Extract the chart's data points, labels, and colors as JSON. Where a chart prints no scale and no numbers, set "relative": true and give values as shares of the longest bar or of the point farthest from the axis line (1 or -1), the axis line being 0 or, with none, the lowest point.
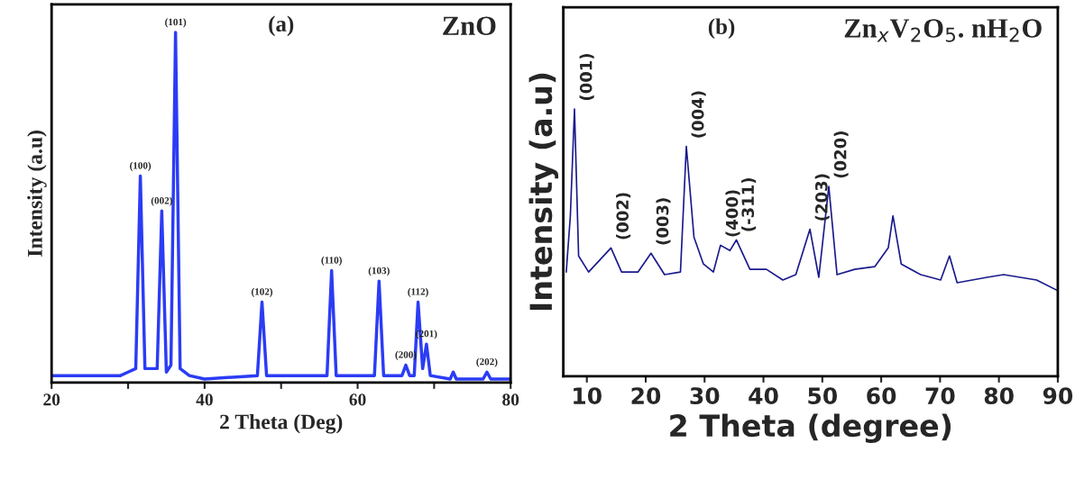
{
  "chart_data": [
    {
      "type": "line",
      "title": "ZnO",
      "xlabel": "2 Theta (Deg)",
      "ylabel": "Intensity (a.u)",
      "relative": true,
      "x": [
        20,
        25,
        29,
        30,
        31.0,
        31.6,
        32.2,
        33.8,
        34.4,
        35.0,
        35.6,
        36.2,
        36.8,
        38,
        40,
        46.9,
        47.5,
        48.1,
        56,
        56.6,
        57.2,
        62.2,
        62.8,
        63.4,
        65.8,
        66.3,
        66.8,
        67.4,
        67.9,
        68.5,
        69.0,
        69.5,
        72.1,
        72.5,
        72.9,
        76.4,
        76.9,
        77.4,
        80
      ],
      "series": [
        {
          "color": "#2b3cf5",
          "values": [
            0.02,
            0.02,
            0.02,
            0.03,
            0.04,
            0.59,
            0.04,
            0.04,
            0.49,
            0.03,
            0.05,
            1.0,
            0.04,
            0.02,
            0.01,
            0.02,
            0.23,
            0.02,
            0.02,
            0.32,
            0.02,
            0.02,
            0.29,
            0.02,
            0.02,
            0.05,
            0.02,
            0.02,
            0.23,
            0.04,
            0.11,
            0.02,
            0.01,
            0.03,
            0.01,
            0.01,
            0.03,
            0.01,
            0.01
          ]
        }
      ],
      "xlim": [
        20,
        80
      ],
      "xticks": [
        20,
        {
          "value": 30,
          "label": null
        },
        40,
        {
          "value": 50,
          "label": null
        },
        60,
        {
          "value": 70,
          "label": null
        },
        80
      ],
      "annotations": [
        "(a)",
        {
          "text": "(100)",
          "x": 31.6,
          "y": 0.59
        },
        {
          "text": "(002)",
          "x": 34.4,
          "y": 0.49
        },
        {
          "text": "(101)",
          "x": 36.2,
          "y": 1.0
        },
        {
          "text": "(102)",
          "x": 47.5,
          "y": 0.23
        },
        {
          "text": "(110)",
          "x": 56.6,
          "y": 0.32
        },
        {
          "text": "(103)",
          "x": 62.8,
          "y": 0.29
        },
        {
          "text": "(200)",
          "x": 66.3,
          "y": 0.05
        },
        {
          "text": "(112)",
          "x": 67.9,
          "y": 0.23
        },
        {
          "text": "(201)",
          "x": 69.0,
          "y": 0.11
        },
        {
          "text": "(202)",
          "x": 76.9,
          "y": 0.03
        }
      ]
    },
    {
      "type": "line",
      "title": "Zn$_{x}$V$_{2}$O$_{5}$. nH$_{2}$O",
      "xlabel": "2 Theta (degree)",
      "ylabel": "Intensity (a.u)",
      "relative": true,
      "x": [
        6.5,
        7.2,
        7.9,
        8.6,
        10.3,
        14.1,
        15.9,
        18.7,
        20.9,
        23.2,
        25.9,
        26.9,
        28.2,
        29.8,
        31.5,
        32.7,
        34.3,
        35.4,
        37.7,
        40.5,
        43.3,
        45.5,
        47.9,
        49.4,
        51.1,
        52.5,
        55.5,
        58.9,
        61.2,
        62.0,
        63.4,
        66.7,
        70.1,
        71.6,
        72.9,
        78.0,
        80.8,
        86.4,
        90
      ],
      "series": [
        {
          "color": "#1a1a8c",
          "values": [
            0.39,
            0.6,
            1.0,
            0.45,
            0.39,
            0.48,
            0.39,
            0.39,
            0.46,
            0.38,
            0.39,
            0.86,
            0.52,
            0.42,
            0.39,
            0.49,
            0.47,
            0.51,
            0.4,
            0.4,
            0.36,
            0.38,
            0.55,
            0.37,
            0.71,
            0.38,
            0.4,
            0.41,
            0.48,
            0.6,
            0.42,
            0.38,
            0.36,
            0.45,
            0.35,
            0.37,
            0.38,
            0.36,
            0.32
          ]
        }
      ],
      "xlim": [
        6,
        90
      ],
      "xticks": [
        10,
        20,
        30,
        40,
        50,
        60,
        70,
        80,
        90
      ],
      "annotations": [
        "(b)",
        {
          "text": "(001)",
          "x": 7.9,
          "y": 1.0
        },
        {
          "text": "(002)",
          "x": 14.1,
          "y": 0.48
        },
        {
          "text": "(003)",
          "x": 20.9,
          "y": 0.46
        },
        {
          "text": "(004)",
          "x": 26.9,
          "y": 0.86
        },
        {
          "text": "(400)",
          "x": 32.7,
          "y": 0.49
        },
        {
          "text": "(-311)",
          "x": 35.4,
          "y": 0.51
        },
        {
          "text": "(203)",
          "x": 47.9,
          "y": 0.55
        },
        {
          "text": "(020)",
          "x": 51.1,
          "y": 0.71
        }
      ]
    }
  ]
}
